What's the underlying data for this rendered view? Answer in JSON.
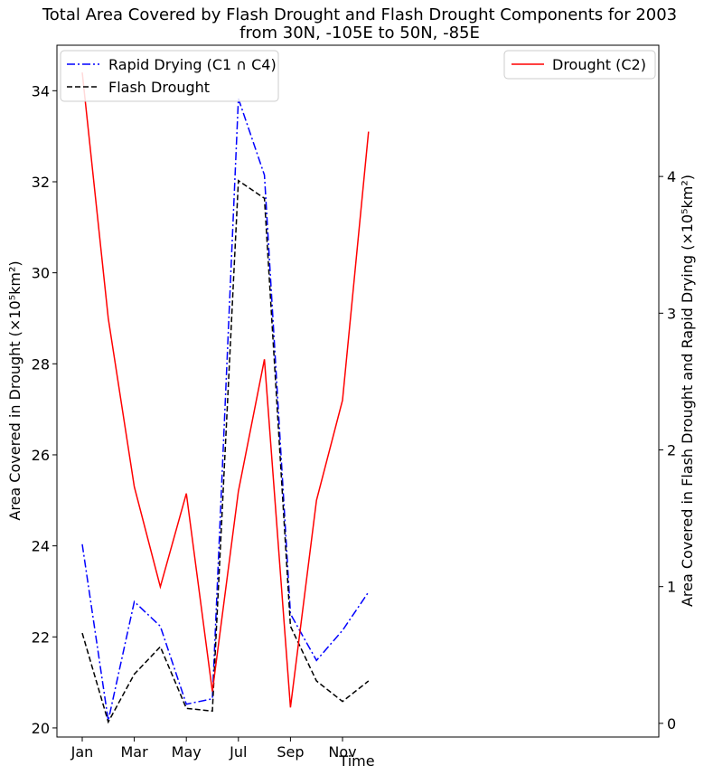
{
  "chart_data": {
    "type": "line",
    "title_line1": "Total Area Covered by Flash Drought and Flash Drought Components for 2003",
    "title_line2": "from 30N, -105E to 50N, -85E",
    "xlabel": "Time",
    "ylabel_left": "Area Covered in Drought (×10⁵km²)",
    "ylabel_right": "Area Covered in Flash Drought and Rapid Drying (×10⁵km²)",
    "x": [
      "Jan",
      "Feb",
      "Mar",
      "Apr",
      "May",
      "Jun",
      "Jul",
      "Aug",
      "Sep",
      "Oct",
      "Nov",
      "Dec"
    ],
    "x_tick_labels": [
      "Jan",
      "Mar",
      "May",
      "Jul",
      "Sep",
      "Nov"
    ],
    "left_axis": {
      "ylim": [
        19.8,
        35.0
      ],
      "ticks": [
        "20",
        "22",
        "24",
        "26",
        "28",
        "30",
        "32",
        "34"
      ]
    },
    "right_axis": {
      "ylim": [
        -0.1,
        4.96
      ],
      "ticks": [
        "0",
        "1",
        "2",
        "3",
        "4"
      ]
    },
    "series": [
      {
        "name": "Rapid Drying (C1 ∩ C4)",
        "axis": "right",
        "color": "#0000ff",
        "style": "dashdot",
        "values": [
          1.31,
          0.02,
          0.89,
          0.71,
          0.14,
          0.18,
          4.57,
          4.01,
          0.8,
          0.46,
          0.68,
          0.96
        ]
      },
      {
        "name": "Flash Drought",
        "axis": "right",
        "color": "#000000",
        "style": "dashed",
        "values": [
          0.66,
          0.01,
          0.36,
          0.56,
          0.11,
          0.09,
          3.97,
          3.84,
          0.71,
          0.31,
          0.16,
          0.31
        ]
      },
      {
        "name": "Drought (C2)",
        "axis": "left",
        "color": "#ff0000",
        "style": "solid",
        "values": [
          34.4,
          29.0,
          25.3,
          23.1,
          25.15,
          20.8,
          25.2,
          28.1,
          20.45,
          25.0,
          27.2,
          33.1
        ]
      }
    ],
    "legend_left": [
      "Rapid Drying (C1 ∩ C4)",
      "Flash Drought"
    ],
    "legend_right": [
      "Drought (C2)"
    ]
  }
}
